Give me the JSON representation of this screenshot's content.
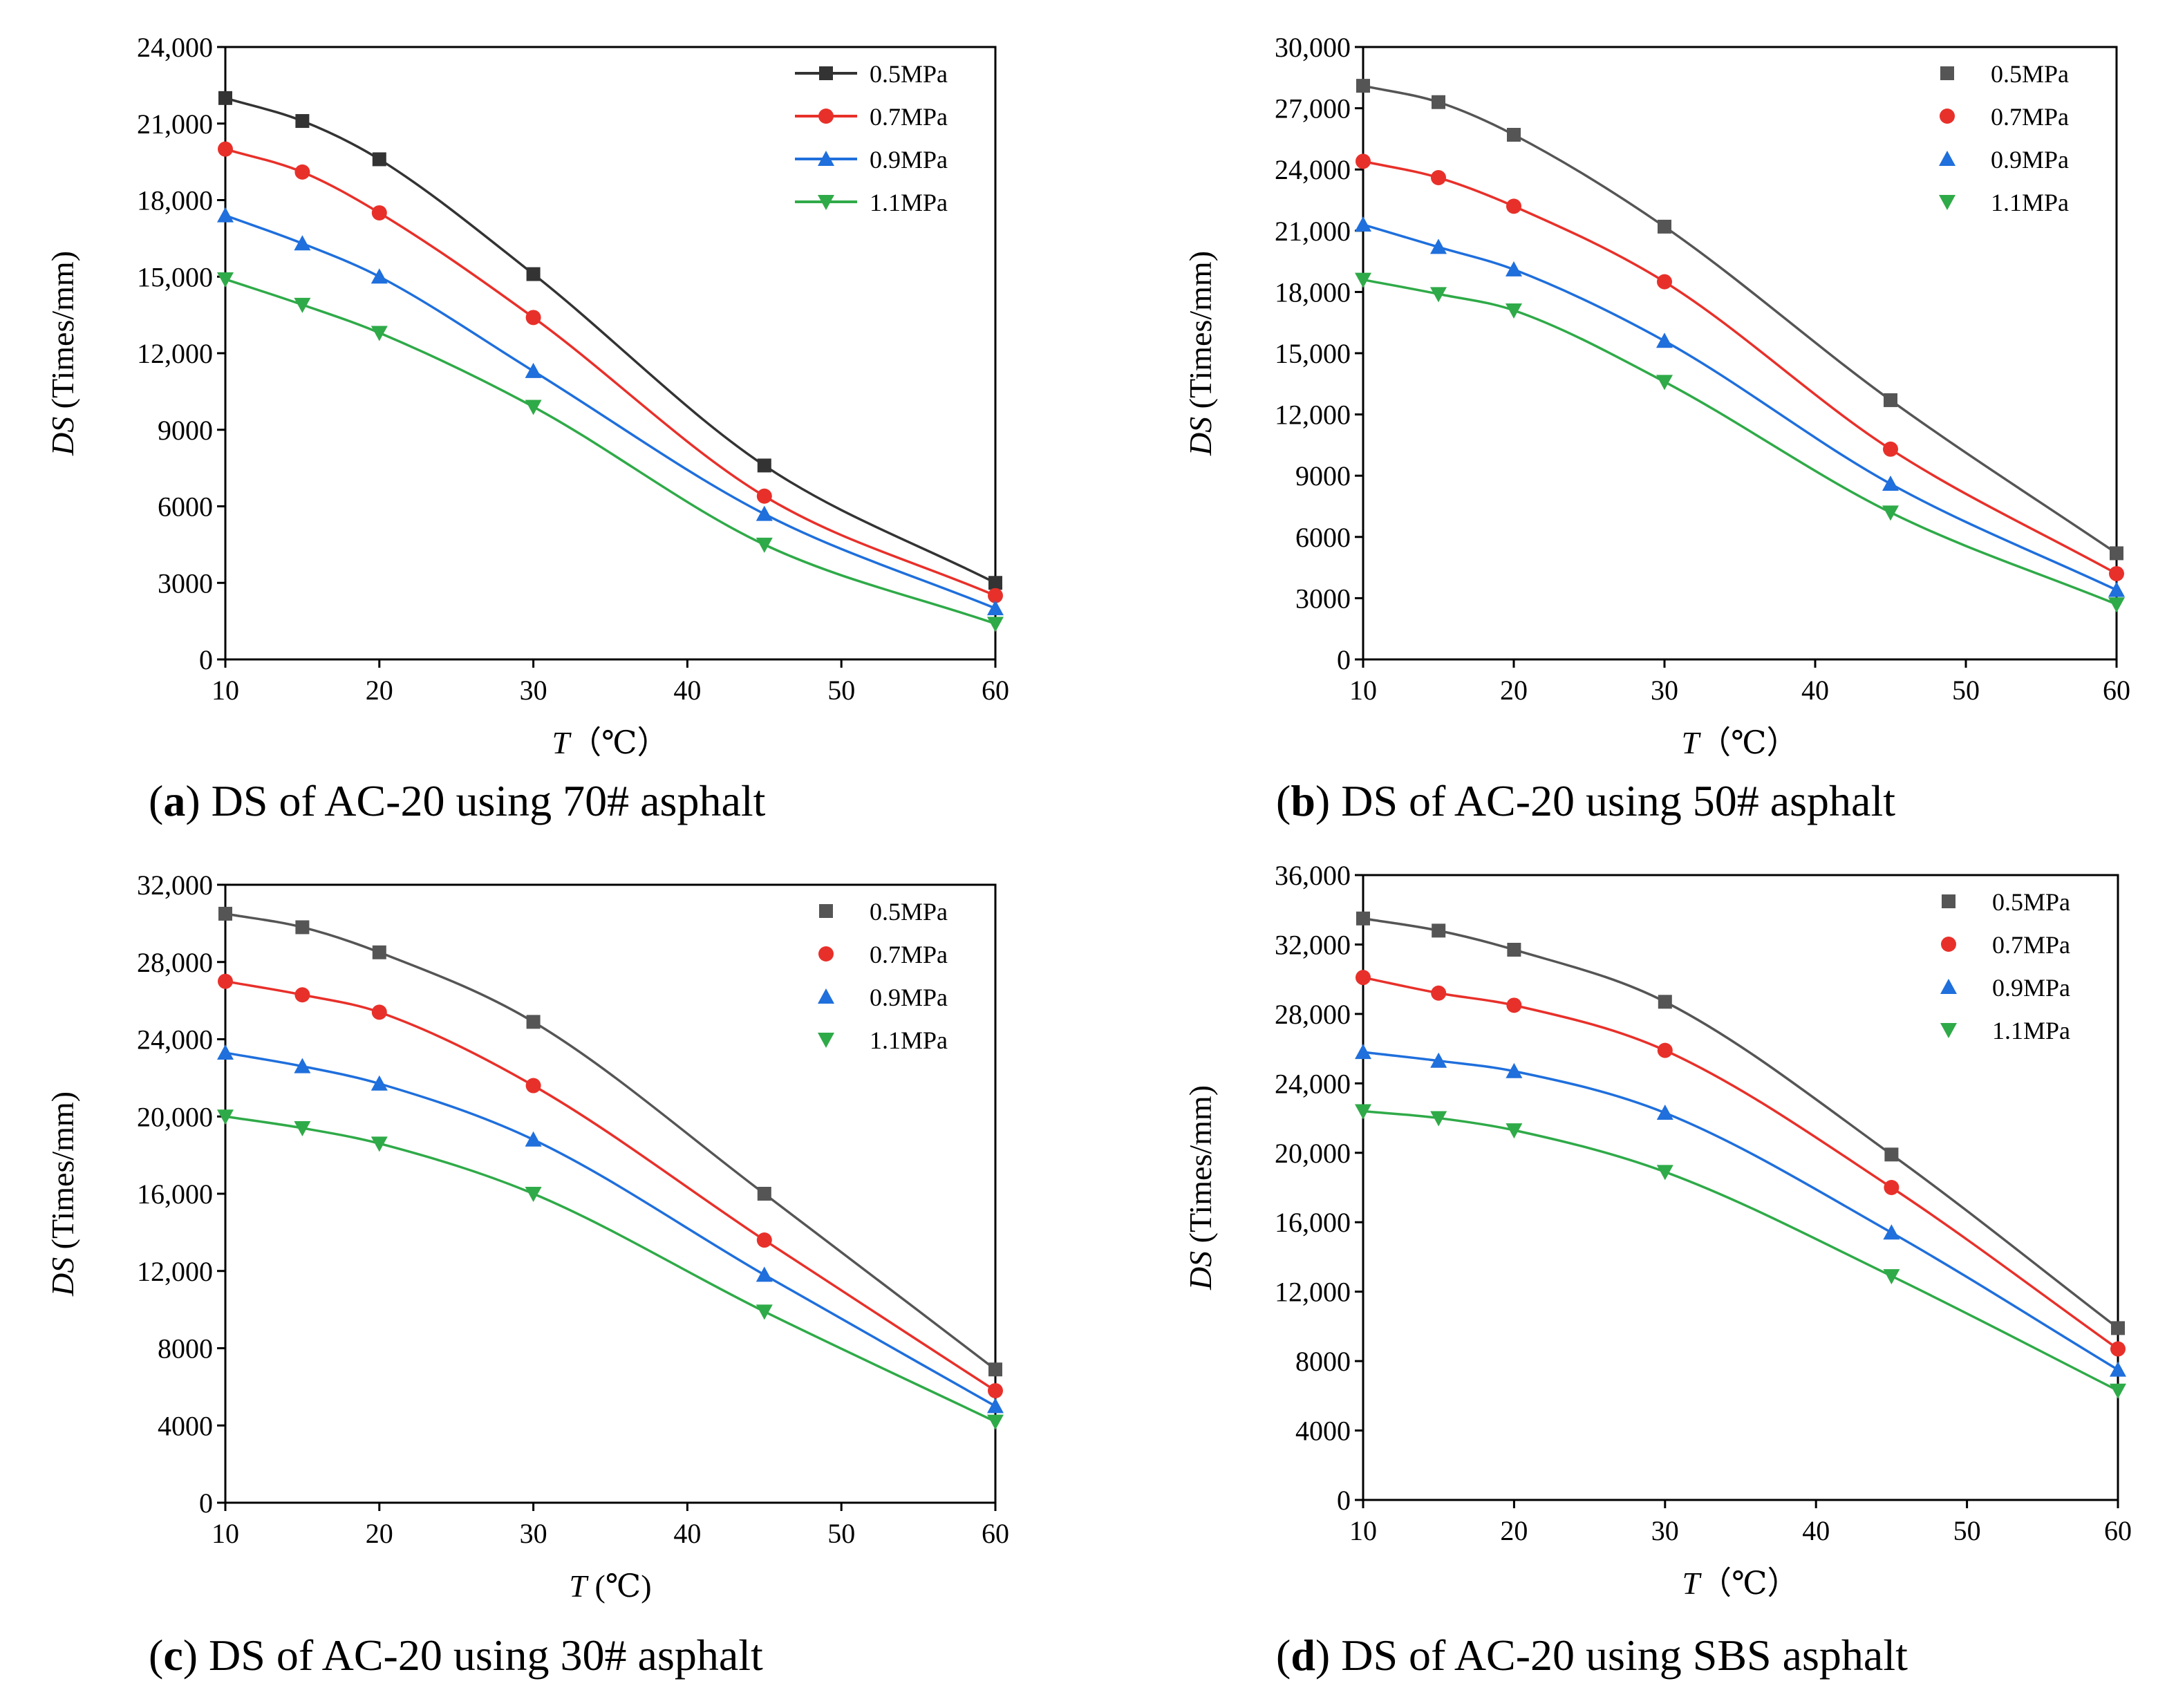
{
  "chart_data": [
    {
      "type": "line",
      "panel_label": "a",
      "caption": "DS of AC-20 using 70# asphalt",
      "xlabel_var": "T",
      "xlabel_unit": "（℃）",
      "ylabel_var": "DS",
      "ylabel_unit": " (Times/mm)",
      "xlim": [
        10,
        60
      ],
      "ylim": [
        0,
        24000
      ],
      "xticks": [
        10,
        20,
        30,
        40,
        50,
        60
      ],
      "xtick_labels": [
        "10",
        "20",
        "30",
        "40",
        "50",
        "60"
      ],
      "yticks": [
        0,
        3000,
        6000,
        9000,
        12000,
        15000,
        18000,
        21000,
        24000
      ],
      "ytick_labels": [
        "0",
        "3000",
        "6000",
        "9000",
        "12,000",
        "15,000",
        "18,000",
        "21,000",
        "24,000"
      ],
      "legend_position": "top-right",
      "legend_lines": true,
      "x": [
        10,
        15,
        20,
        30,
        45,
        60
      ],
      "series": [
        {
          "name": "0.5MPa",
          "color": "#333333",
          "marker": "square",
          "values": [
            22000,
            21100,
            19600,
            15100,
            7600,
            3000
          ]
        },
        {
          "name": "0.7MPa",
          "color": "#e8302a",
          "marker": "circle",
          "values": [
            20000,
            19100,
            17500,
            13400,
            6400,
            2500
          ]
        },
        {
          "name": "0.9MPa",
          "color": "#1f6fdc",
          "marker": "triangle-up",
          "values": [
            17400,
            16300,
            15000,
            11300,
            5700,
            2000
          ]
        },
        {
          "name": "1.1MPa",
          "color": "#2faa48",
          "marker": "triangle-down",
          "values": [
            14900,
            13900,
            12800,
            9900,
            4500,
            1400
          ]
        }
      ]
    },
    {
      "type": "line",
      "panel_label": "b",
      "caption": "DS of AC-20 using 50# asphalt",
      "xlabel_var": "T",
      "xlabel_unit": "（℃）",
      "ylabel_var": "DS",
      "ylabel_unit": " (Times/mm)",
      "xlim": [
        10,
        60
      ],
      "ylim": [
        0,
        30000
      ],
      "xticks": [
        10,
        20,
        30,
        40,
        50,
        60
      ],
      "xtick_labels": [
        "10",
        "20",
        "30",
        "40",
        "50",
        "60"
      ],
      "yticks": [
        0,
        3000,
        6000,
        9000,
        12000,
        15000,
        18000,
        21000,
        24000,
        27000,
        30000
      ],
      "ytick_labels": [
        "0",
        "3000",
        "6000",
        "9000",
        "12,000",
        "15,000",
        "18,000",
        "21,000",
        "24,000",
        "27,000",
        "30,000"
      ],
      "legend_position": "top-right",
      "legend_lines": false,
      "x": [
        10,
        15,
        20,
        30,
        45,
        60
      ],
      "series": [
        {
          "name": "0.5MPa",
          "color": "#555555",
          "marker": "square",
          "values": [
            28100,
            27300,
            25700,
            21200,
            12700,
            5200
          ]
        },
        {
          "name": "0.7MPa",
          "color": "#e8302a",
          "marker": "circle",
          "values": [
            24400,
            23600,
            22200,
            18500,
            10300,
            4200
          ]
        },
        {
          "name": "0.9MPa",
          "color": "#1f6fdc",
          "marker": "triangle-up",
          "values": [
            21300,
            20200,
            19100,
            15600,
            8600,
            3400
          ]
        },
        {
          "name": "1.1MPa",
          "color": "#2faa48",
          "marker": "triangle-down",
          "values": [
            18600,
            17900,
            17100,
            13600,
            7200,
            2700
          ]
        }
      ]
    },
    {
      "type": "line",
      "panel_label": "c",
      "caption": "DS of AC-20 using 30# asphalt",
      "xlabel_var": "T",
      "xlabel_unit": " (℃)",
      "ylabel_var": "DS",
      "ylabel_unit": " (Times/mm)",
      "xlim": [
        10,
        60
      ],
      "ylim": [
        0,
        32000
      ],
      "xticks": [
        10,
        20,
        30,
        40,
        50,
        60
      ],
      "xtick_labels": [
        "10",
        "20",
        "30",
        "40",
        "50",
        "60"
      ],
      "yticks": [
        0,
        4000,
        8000,
        12000,
        16000,
        20000,
        24000,
        28000,
        32000
      ],
      "ytick_labels": [
        "0",
        "4000",
        "8000",
        "12,000",
        "16,000",
        "20,000",
        "24,000",
        "28,000",
        "32,000"
      ],
      "legend_position": "top-right",
      "legend_lines": false,
      "x": [
        10,
        15,
        20,
        30,
        45,
        60
      ],
      "series": [
        {
          "name": "0.5MPa",
          "color": "#555555",
          "marker": "square",
          "values": [
            30500,
            29800,
            28500,
            24900,
            16000,
            6900
          ]
        },
        {
          "name": "0.7MPa",
          "color": "#e8302a",
          "marker": "circle",
          "values": [
            27000,
            26300,
            25400,
            21600,
            13600,
            5800
          ]
        },
        {
          "name": "0.9MPa",
          "color": "#1f6fdc",
          "marker": "triangle-up",
          "values": [
            23300,
            22600,
            21700,
            18800,
            11800,
            5000
          ]
        },
        {
          "name": "1.1MPa",
          "color": "#2faa48",
          "marker": "triangle-down",
          "values": [
            20000,
            19400,
            18600,
            16000,
            9900,
            4200
          ]
        }
      ]
    },
    {
      "type": "line",
      "panel_label": "d",
      "caption": "DS of AC-20 using SBS asphalt",
      "xlabel_var": "T",
      "xlabel_unit": "（℃）",
      "ylabel_var": "DS",
      "ylabel_unit": " (Times/mm)",
      "xlim": [
        10,
        60
      ],
      "ylim": [
        0,
        36000
      ],
      "xticks": [
        10,
        20,
        30,
        40,
        50,
        60
      ],
      "xtick_labels": [
        "10",
        "20",
        "30",
        "40",
        "50",
        "60"
      ],
      "yticks": [
        0,
        4000,
        8000,
        12000,
        16000,
        20000,
        24000,
        28000,
        32000,
        36000
      ],
      "ytick_labels": [
        "0",
        "4000",
        "8000",
        "12,000",
        "16,000",
        "20,000",
        "24,000",
        "28,000",
        "32,000",
        "36,000"
      ],
      "legend_position": "top-right",
      "legend_lines": false,
      "x": [
        10,
        15,
        20,
        30,
        45,
        60
      ],
      "series": [
        {
          "name": "0.5MPa",
          "color": "#555555",
          "marker": "square",
          "values": [
            33500,
            32800,
            31700,
            28700,
            19900,
            9900
          ]
        },
        {
          "name": "0.7MPa",
          "color": "#e8302a",
          "marker": "circle",
          "values": [
            30100,
            29200,
            28500,
            25900,
            18000,
            8700
          ]
        },
        {
          "name": "0.9MPa",
          "color": "#1f6fdc",
          "marker": "triangle-up",
          "values": [
            25800,
            25300,
            24700,
            22300,
            15400,
            7500
          ]
        },
        {
          "name": "1.1MPa",
          "color": "#2faa48",
          "marker": "triangle-down",
          "values": [
            22400,
            22000,
            21300,
            18900,
            12900,
            6300
          ]
        }
      ]
    }
  ]
}
